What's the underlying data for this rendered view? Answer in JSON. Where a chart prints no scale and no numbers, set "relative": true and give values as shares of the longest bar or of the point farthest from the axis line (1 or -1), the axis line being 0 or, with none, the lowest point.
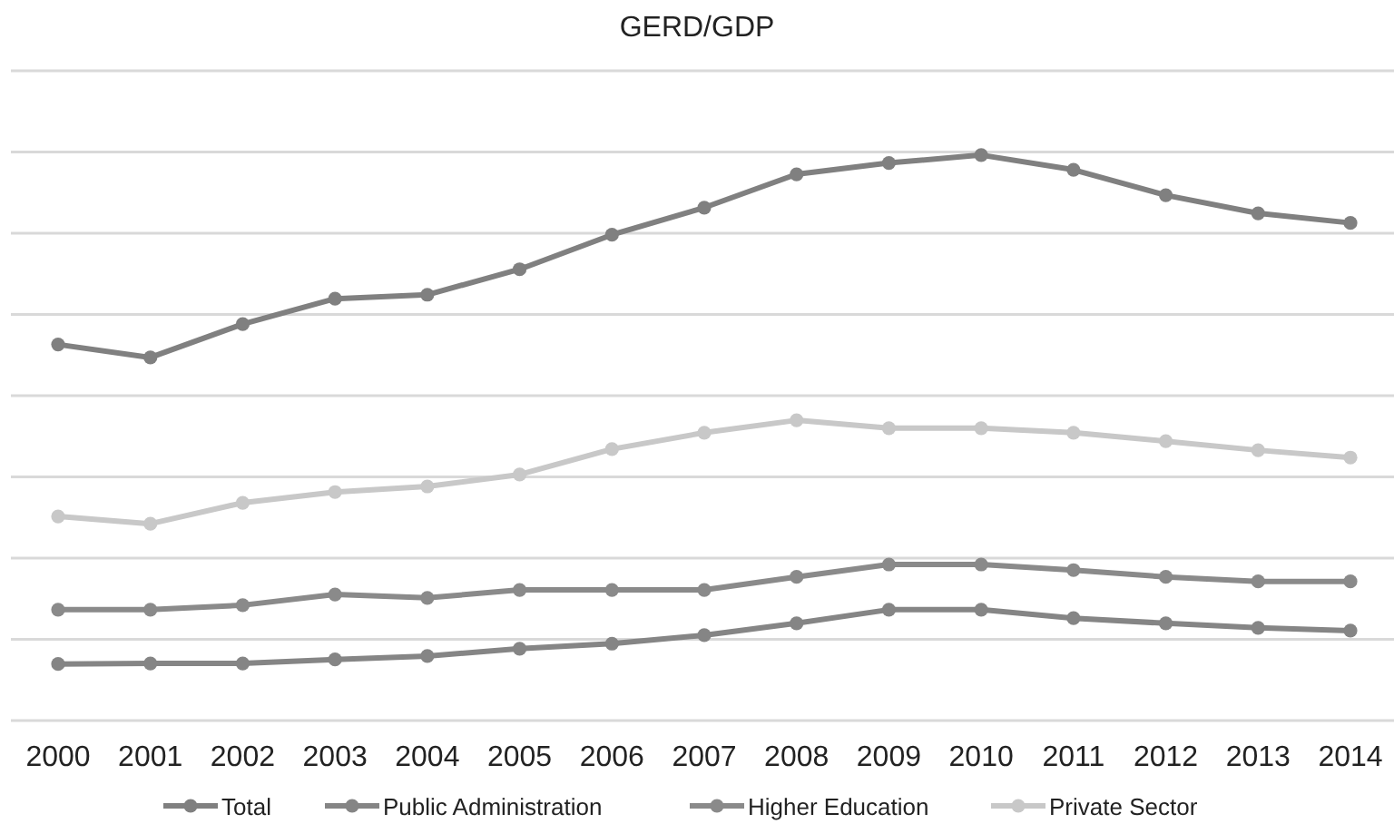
{
  "chart_data": {
    "type": "line",
    "title": "GERD/GDP",
    "relative": true,
    "grid": "y",
    "legend": "bottom",
    "marker": "circle",
    "line_style": "solid",
    "categories": [
      "2000",
      "2001",
      "2002",
      "2003",
      "2004",
      "2005",
      "2006",
      "2007",
      "2008",
      "2009",
      "2010",
      "2011",
      "2012",
      "2013",
      "2014"
    ],
    "series": [
      {
        "name": "Total",
        "color": "#808080",
        "values": [
          0.665,
          0.642,
          0.701,
          0.746,
          0.753,
          0.798,
          0.859,
          0.907,
          0.966,
          0.986,
          1,
          0.974,
          0.929,
          0.897,
          0.88
        ]
      },
      {
        "name": "Public Administration",
        "color": "#858585",
        "values": [
          0.1,
          0.101,
          0.101,
          0.108,
          0.114,
          0.127,
          0.136,
          0.151,
          0.172,
          0.196,
          0.196,
          0.181,
          0.172,
          0.164,
          0.159
        ]
      },
      {
        "name": "Higher Education",
        "color": "#8a8a8a",
        "values": [
          0.196,
          0.196,
          0.204,
          0.223,
          0.217,
          0.231,
          0.231,
          0.231,
          0.254,
          0.276,
          0.276,
          0.266,
          0.254,
          0.246,
          0.246
        ]
      },
      {
        "name": "Private Sector",
        "color": "#c8c8c8",
        "values": [
          0.361,
          0.348,
          0.385,
          0.404,
          0.414,
          0.435,
          0.48,
          0.509,
          0.531,
          0.517,
          0.517,
          0.509,
          0.494,
          0.478,
          0.465
        ]
      }
    ]
  }
}
